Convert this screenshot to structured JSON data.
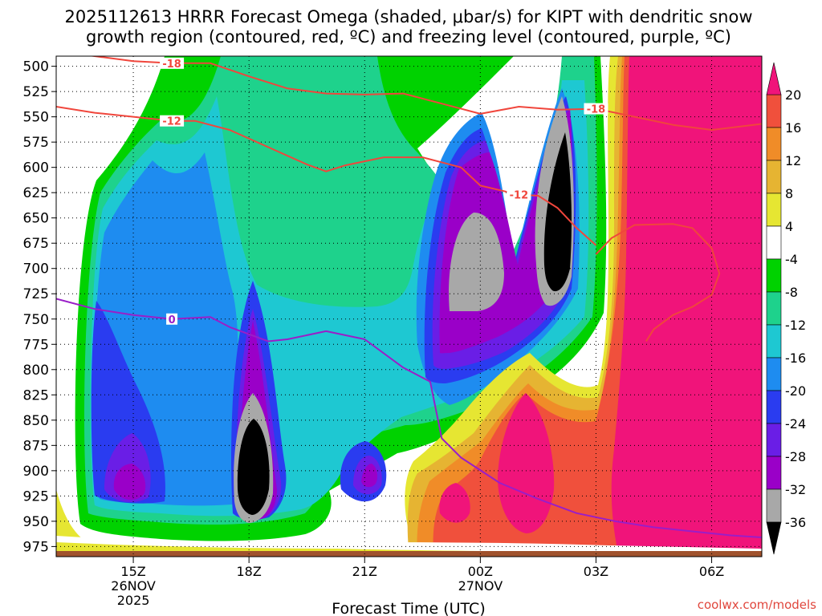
{
  "title_line1": "2025112613 HRRR Forecast Omega (shaded, μbar/s) for KIPT with dendritic snow",
  "title_line2": "growth region (contoured, red, ºC) and freezing level (contoured, purple, ºC)",
  "watermark": "coolwx.com/models",
  "chart_data": {
    "type": "heatmap",
    "title": "2025112613 HRRR Forecast Omega (shaded, μbar/s) for KIPT with dendritic snow growth region (contoured, red, ºC) and freezing level (contoured, purple, ºC)",
    "xlabel": "Forecast Time (UTC)",
    "ylabel": "",
    "x_unit": "hours since 2025-11-26 13Z",
    "xlim": [
      0,
      18.3
    ],
    "x_ticks": [
      {
        "x": 2,
        "label": "15Z",
        "sub": [
          "26NOV",
          "2025"
        ]
      },
      {
        "x": 5,
        "label": "18Z",
        "sub": []
      },
      {
        "x": 8,
        "label": "21Z",
        "sub": []
      },
      {
        "x": 11,
        "label": "00Z",
        "sub": [
          "27NOV"
        ]
      },
      {
        "x": 14,
        "label": "03Z",
        "sub": []
      },
      {
        "x": 17,
        "label": "06Z",
        "sub": []
      }
    ],
    "ylim": [
      985,
      490
    ],
    "y_ticks": [
      500,
      525,
      550,
      575,
      600,
      625,
      650,
      675,
      700,
      725,
      750,
      775,
      800,
      825,
      850,
      875,
      900,
      925,
      950,
      975
    ],
    "grid": true,
    "colorbar": {
      "levels": [
        -36,
        -32,
        -28,
        -24,
        -20,
        -16,
        -12,
        -8,
        -4,
        4,
        8,
        12,
        16,
        20
      ],
      "labels": [
        "20",
        "16",
        "12",
        "8",
        "4",
        "-4",
        "-8",
        "-12",
        "-16",
        "-20",
        "-24",
        "-28",
        "-32",
        "-36"
      ],
      "colors": {
        "lt_-36": "#000000",
        "-36_-32": "#a8a8a8",
        "-32_-28": "#9a00c8",
        "-28_-24": "#6a1ee6",
        "-24_-20": "#2a3cf0",
        "-20_-16": "#1e8cf0",
        "-16_-12": "#1ec8d2",
        "-12_-8": "#1ed28c",
        "-8_-4": "#00d200",
        "-4_4": "#ffffff",
        "4_8": "#e6e632",
        "8_12": "#e6b432",
        "12_16": "#f08c28",
        "16_20": "#f0503c",
        "gt_20": "#f0147a"
      }
    },
    "omega_features": [
      {
        "kind": "upward_max",
        "time_x": 5.0,
        "pressure": 870,
        "value": -36
      },
      {
        "kind": "upward_max",
        "time_x": 13.2,
        "pressure": 610,
        "value": -36
      },
      {
        "kind": "upward",
        "time_x": 11.0,
        "pressure": 660,
        "value": -32
      },
      {
        "kind": "upward",
        "time_x": 2.0,
        "pressure": 895,
        "value": -28
      },
      {
        "kind": "upward",
        "time_x": 8.0,
        "pressure": 880,
        "value": -28
      },
      {
        "kind": "downward_max",
        "time_x": 11.5,
        "pressure": 870,
        "value": 20
      },
      {
        "kind": "downward_max",
        "time_x": 10.0,
        "pressure": 905,
        "value": 16
      },
      {
        "kind": "downward_max",
        "time_x": 16.5,
        "pressure": 700,
        "value": 20
      }
    ],
    "series": [
      {
        "name": "-18",
        "color": "#f0463c",
        "x": [
          0.0,
          1.0,
          2.0,
          3.0,
          4.0,
          5.0,
          6.0,
          7.0,
          8.0,
          9.0,
          10.0,
          11.0,
          12.0,
          13.0,
          14.0,
          15.0,
          16.0,
          17.0,
          18.3
        ],
        "y": [
          485,
          490,
          495,
          497,
          497,
          510,
          522,
          527,
          528,
          527,
          537,
          547,
          540,
          543,
          542,
          550,
          558,
          563,
          557
        ],
        "label_at": [
          3,
          14
        ]
      },
      {
        "name": "-12",
        "color": "#f0463c",
        "x": [
          0.0,
          1.0,
          2.0,
          3.0,
          3.6,
          4.5,
          5.5,
          6.5,
          7.0,
          7.5,
          8.5,
          9.5,
          10.5,
          11.0,
          12.0,
          12.5,
          13.0,
          13.5,
          14.0
        ],
        "y": [
          540,
          546,
          550,
          554,
          554,
          563,
          580,
          597,
          604,
          598,
          590,
          590,
          600,
          618,
          627,
          628,
          640,
          660,
          677
        ],
        "label_at": [
          3,
          14
        ]
      },
      {
        "name": "0",
        "color": "#9a1ec8",
        "x": [
          0.0,
          1.0,
          2.0,
          3.0,
          4.0,
          4.5,
          5.5,
          6.0,
          7.0,
          8.0,
          9.0,
          9.7,
          10.0,
          10.5,
          11.5,
          12.5,
          13.5,
          14.5,
          15.5,
          16.5,
          17.5,
          18.3
        ],
        "y": [
          730,
          740,
          746,
          750,
          748,
          758,
          772,
          770,
          762,
          770,
          798,
          812,
          868,
          887,
          912,
          928,
          942,
          950,
          956,
          960,
          964,
          966
        ],
        "label_at": [
          3
        ]
      },
      {
        "name": "",
        "color": "#f0463c",
        "x": [
          14.0,
          14.4,
          15.0,
          16.0,
          16.5,
          17.0,
          17.2,
          17.0,
          16.5,
          16.0,
          15.5,
          15.3
        ],
        "y": [
          686,
          670,
          657,
          656,
          660,
          680,
          705,
          726,
          738,
          746,
          760,
          772
        ],
        "label_at": []
      }
    ]
  }
}
